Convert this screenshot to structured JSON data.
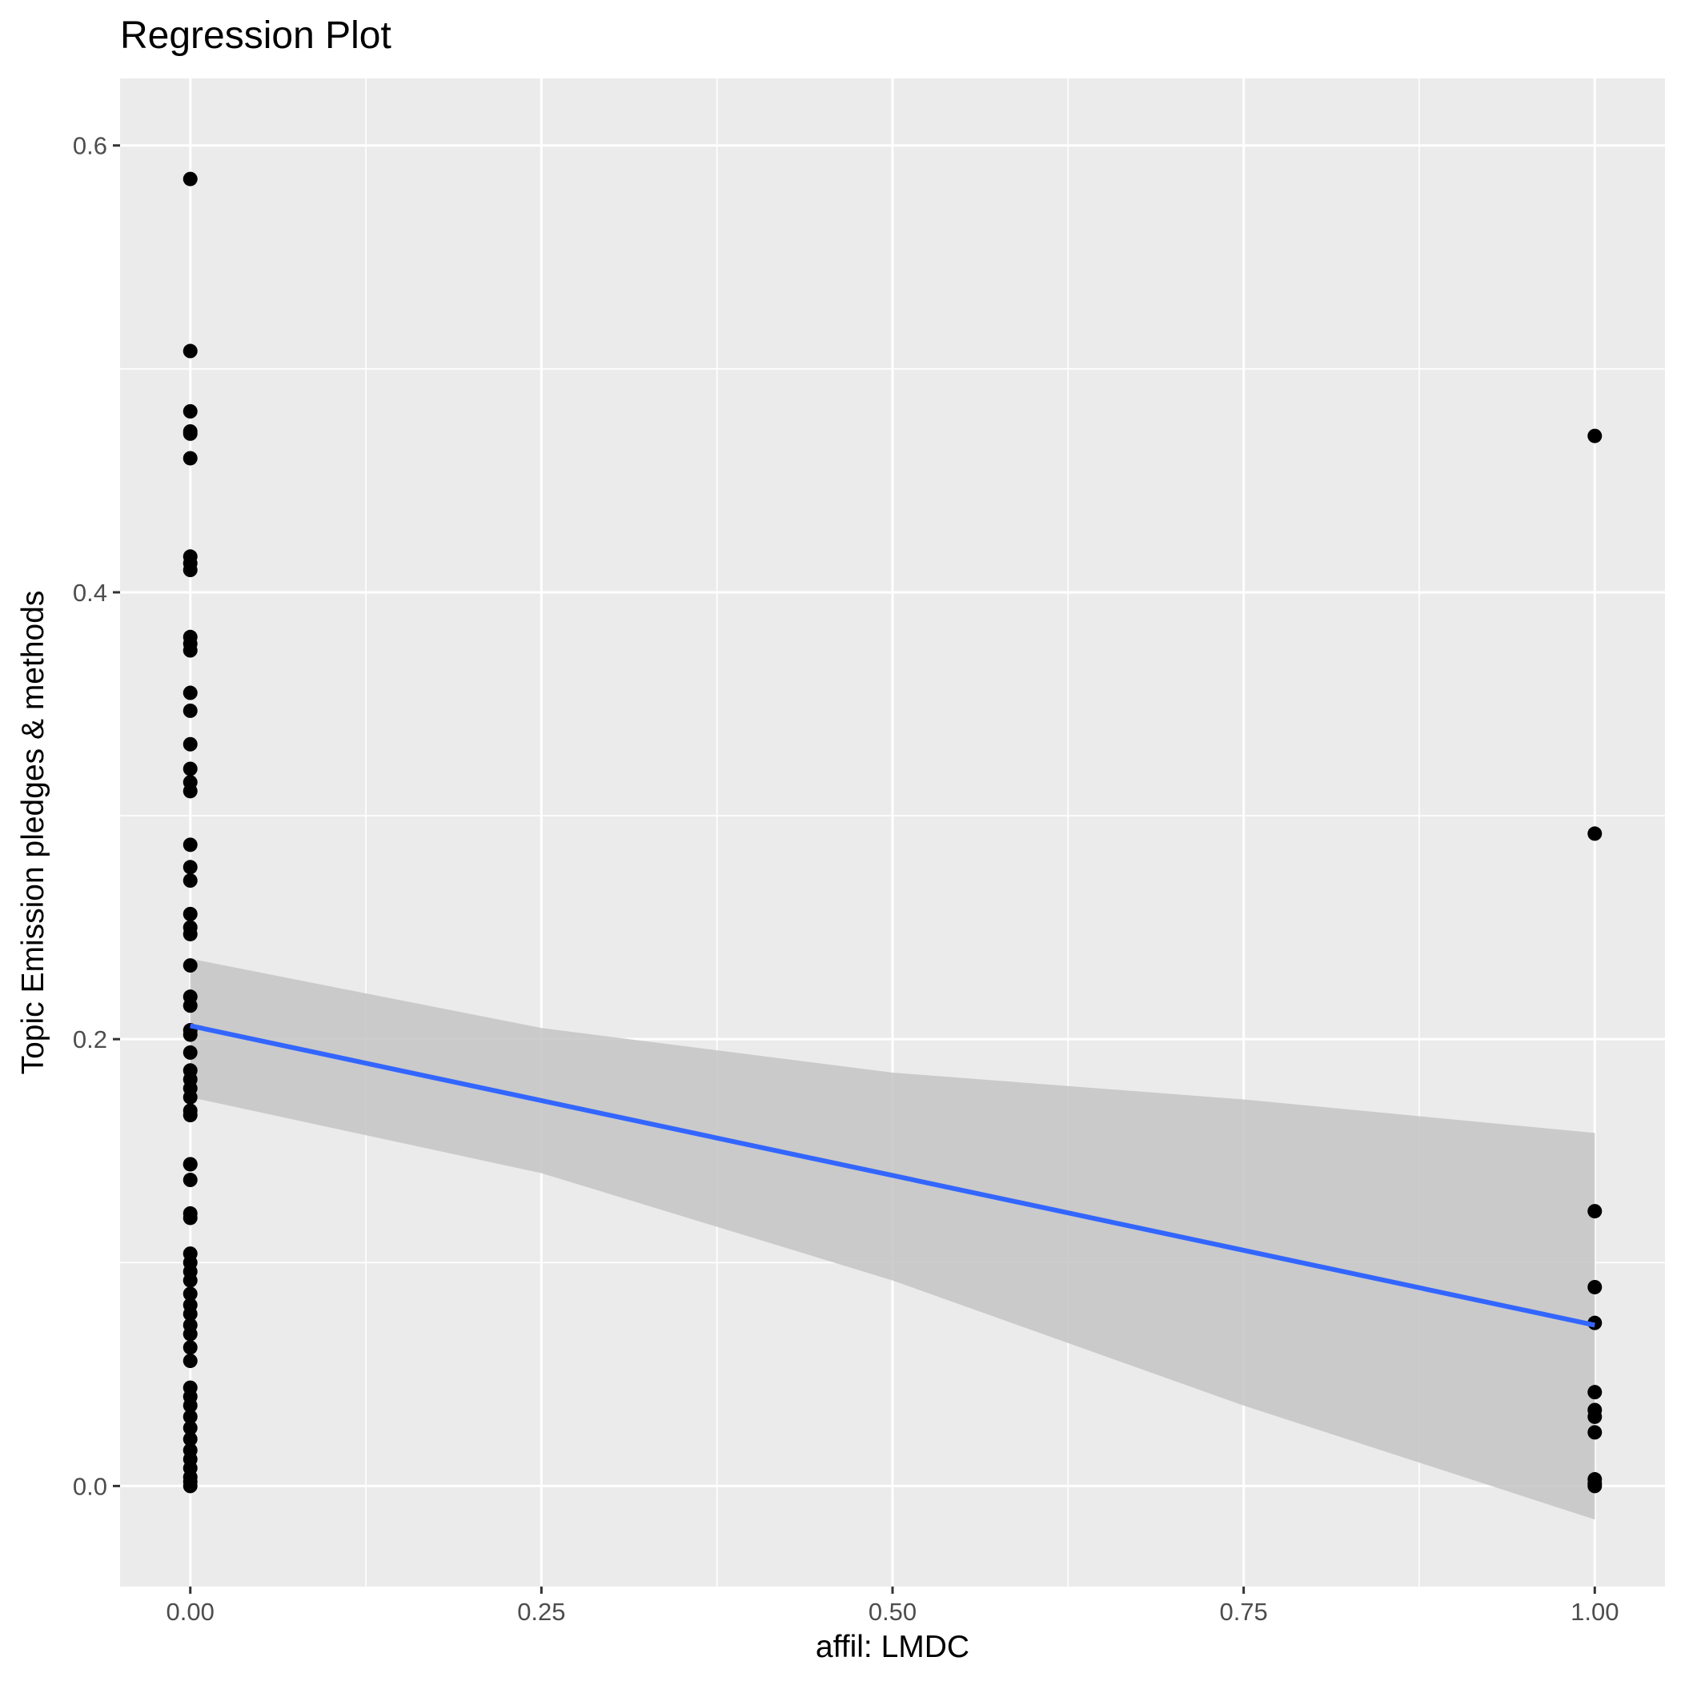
{
  "chart_data": {
    "type": "scatter",
    "title": "Regression Plot",
    "xlabel": "affil: LMDC",
    "ylabel": "Topic Emission pledges & methods",
    "xlim": [
      -0.05,
      1.05
    ],
    "ylim": [
      -0.045,
      0.63
    ],
    "x_ticks": [
      0,
      0.25,
      0.5,
      0.75,
      1
    ],
    "x_tick_labels": [
      "0.00",
      "0.25",
      "0.50",
      "0.75",
      "1.00"
    ],
    "y_ticks": [
      0,
      0.2,
      0.4,
      0.6
    ],
    "y_tick_labels": [
      "0.0",
      "0.2",
      "0.4",
      "0.6"
    ],
    "grid": true,
    "colors": {
      "panel": "#ebebeb",
      "grid": "#ffffff",
      "points": "#000000",
      "fit_line": "#3366ff",
      "ribbon": "#c4c4c4"
    },
    "points": {
      "x0": [
        0.585,
        0.508,
        0.481,
        0.472,
        0.471,
        0.46,
        0.416,
        0.413,
        0.41,
        0.38,
        0.377,
        0.374,
        0.355,
        0.347,
        0.332,
        0.321,
        0.315,
        0.311,
        0.287,
        0.277,
        0.271,
        0.256,
        0.25,
        0.247,
        0.233,
        0.219,
        0.215,
        0.204,
        0.202,
        0.194,
        0.186,
        0.182,
        0.178,
        0.174,
        0.168,
        0.166,
        0.144,
        0.144,
        0.137,
        0.122,
        0.12,
        0.104,
        0.1,
        0.096,
        0.092,
        0.086,
        0.081,
        0.077,
        0.072,
        0.068,
        0.062,
        0.056,
        0.044,
        0.04,
        0.036,
        0.031,
        0.026,
        0.021,
        0.016,
        0.012,
        0.008,
        0.004,
        0.002,
        0.0
      ],
      "x1": [
        0.47,
        0.292,
        0.123,
        0.089,
        0.073,
        0.042,
        0.034,
        0.031,
        0.024,
        0.003,
        0.001,
        0.0
      ]
    },
    "fit": {
      "x": [
        0,
        1
      ],
      "y": [
        0.206,
        0.072
      ]
    },
    "ribbon": {
      "x": [
        0,
        0.25,
        0.5,
        0.75,
        1
      ],
      "upper": [
        0.236,
        0.205,
        0.185,
        0.173,
        0.158
      ],
      "lower": [
        0.174,
        0.14,
        0.092,
        0.036,
        -0.015
      ]
    }
  }
}
